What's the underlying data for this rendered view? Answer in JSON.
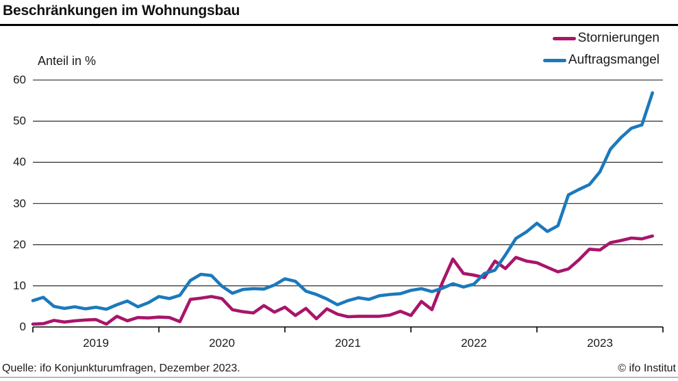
{
  "title": "Beschränkungen im Wohnungsbau",
  "axis_note": "Anteil in %",
  "legend": {
    "items": [
      {
        "label": "Stornierungen",
        "color": "#a8156a"
      },
      {
        "label": "Auftragsmangel",
        "color": "#1b79bc"
      }
    ]
  },
  "footer": {
    "source": "Quelle: ifo Konjunkturumfragen, Dezember 2023.",
    "copyright": "© ifo Institut"
  },
  "chart_data": {
    "type": "line",
    "title": "Beschränkungen im Wohnungsbau",
    "ylabel": "Anteil in %",
    "ylim": [
      0,
      60
    ],
    "y_ticks": [
      0,
      10,
      20,
      30,
      40,
      50,
      60
    ],
    "x_tick_labels": [
      "2019",
      "2020",
      "2021",
      "2022",
      "2023"
    ],
    "grid": "horizontal",
    "legend_position": "top-right",
    "frequency": "monthly",
    "categories": [
      "2019-01",
      "2019-02",
      "2019-03",
      "2019-04",
      "2019-05",
      "2019-06",
      "2019-07",
      "2019-08",
      "2019-09",
      "2019-10",
      "2019-11",
      "2019-12",
      "2020-01",
      "2020-02",
      "2020-03",
      "2020-04",
      "2020-05",
      "2020-06",
      "2020-07",
      "2020-08",
      "2020-09",
      "2020-10",
      "2020-11",
      "2020-12",
      "2021-01",
      "2021-02",
      "2021-03",
      "2021-04",
      "2021-05",
      "2021-06",
      "2021-07",
      "2021-08",
      "2021-09",
      "2021-10",
      "2021-11",
      "2021-12",
      "2022-01",
      "2022-02",
      "2022-03",
      "2022-04",
      "2022-05",
      "2022-06",
      "2022-07",
      "2022-08",
      "2022-09",
      "2022-10",
      "2022-11",
      "2022-12",
      "2023-01",
      "2023-02",
      "2023-03",
      "2023-04",
      "2023-05",
      "2023-06",
      "2023-07",
      "2023-08",
      "2023-09",
      "2023-10",
      "2023-11",
      "2023-12"
    ],
    "series": [
      {
        "name": "Stornierungen",
        "color": "#a8156a",
        "values": [
          0.7,
          0.8,
          1.6,
          1.2,
          1.5,
          1.7,
          1.8,
          0.7,
          2.6,
          1.5,
          2.3,
          2.2,
          2.4,
          2.3,
          1.3,
          6.7,
          7.0,
          7.4,
          6.9,
          4.2,
          3.7,
          3.4,
          5.2,
          3.6,
          4.8,
          2.8,
          4.5,
          2.0,
          4.4,
          3.1,
          2.5,
          2.6,
          2.6,
          2.6,
          2.9,
          3.8,
          2.8,
          6.2,
          4.2,
          10.8,
          16.5,
          13.0,
          12.6,
          12.0,
          16.0,
          14.2,
          16.9,
          16.0,
          15.6,
          14.5,
          13.4,
          14.1,
          16.3,
          18.9,
          18.7,
          20.5,
          21.0,
          21.6,
          21.4,
          22.1
        ]
      },
      {
        "name": "Auftragsmangel",
        "color": "#1b79bc",
        "values": [
          6.4,
          7.2,
          5.0,
          4.5,
          4.9,
          4.4,
          4.8,
          4.3,
          5.4,
          6.3,
          4.9,
          5.9,
          7.4,
          6.9,
          7.7,
          11.3,
          12.8,
          12.5,
          9.9,
          8.2,
          9.1,
          9.3,
          9.2,
          10.2,
          11.7,
          11.1,
          8.7,
          7.9,
          6.8,
          5.4,
          6.4,
          7.1,
          6.7,
          7.6,
          7.9,
          8.1,
          8.9,
          9.3,
          8.6,
          9.4,
          10.5,
          9.7,
          10.4,
          13.0,
          13.8,
          17.5,
          21.5,
          23.1,
          25.2,
          23.2,
          24.6,
          32.1,
          33.4,
          34.6,
          37.7,
          43.2,
          46.0,
          48.3,
          49.1,
          56.9
        ]
      }
    ]
  }
}
